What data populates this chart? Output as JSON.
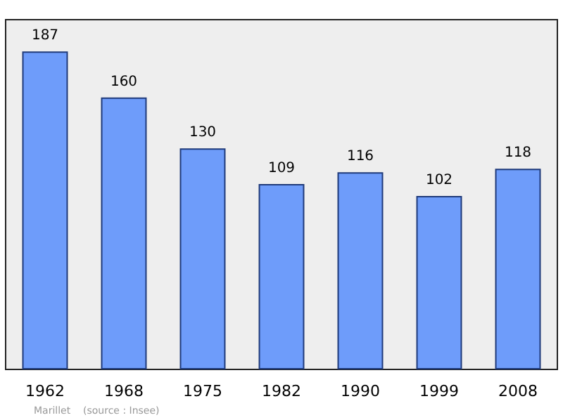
{
  "chart_data": {
    "type": "bar",
    "categories": [
      "1962",
      "1968",
      "1975",
      "1982",
      "1990",
      "1999",
      "2008"
    ],
    "values": [
      187,
      160,
      130,
      109,
      116,
      102,
      118
    ],
    "color": "#6e9cfa",
    "data_labels": true,
    "annotations": [
      "Marillet    (source : Insee)"
    ]
  }
}
